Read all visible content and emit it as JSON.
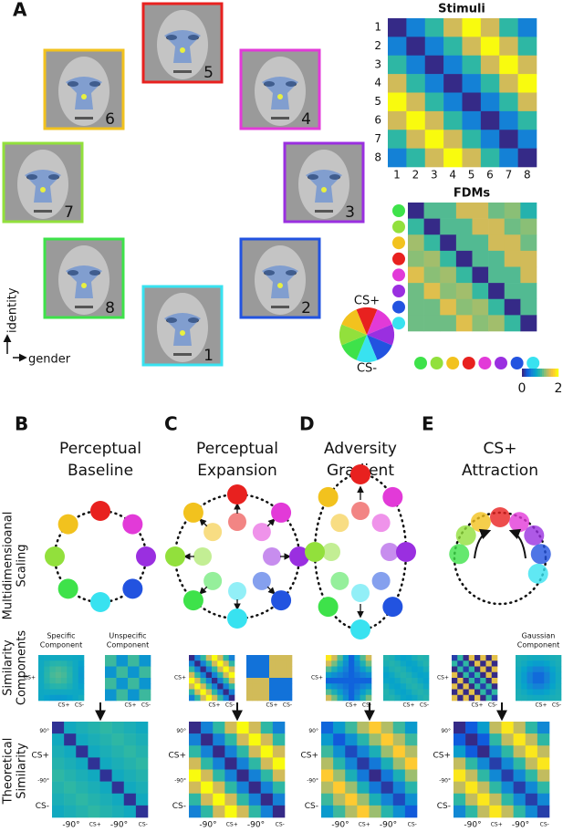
{
  "panel_a": {
    "letter": "A",
    "stimuli_title": "Stimuli",
    "fdms_title": "FDMs",
    "stimuli_ticks": [
      1,
      2,
      3,
      4,
      5,
      6,
      7,
      8
    ],
    "face_numbers": [
      1,
      2,
      3,
      4,
      5,
      6,
      7,
      8
    ],
    "cs_plus": "CS+",
    "cs_minus": "CS-",
    "axis_y": "identity",
    "axis_x": "gender",
    "colorbar_ticks": [
      0,
      2
    ]
  },
  "row_labels": [
    [
      "Multidimensioanal",
      "Scaling"
    ],
    [
      "Similarity",
      "Components"
    ],
    [
      "Theoretical",
      "Similarity"
    ]
  ],
  "matrix_ticks": {
    "y": [
      "90°",
      "CS+",
      "-90°",
      "CS-"
    ],
    "x": [
      "-90°",
      "CS+",
      "-90°",
      "CS-"
    ]
  },
  "component_ticks": [
    "CS+",
    "CS-"
  ],
  "panels": [
    {
      "letter": "B",
      "title": [
        "Perceptual",
        "Baseline"
      ],
      "components": [
        [
          "Specific",
          "Component"
        ],
        [
          "Unspecific",
          "Component"
        ]
      ]
    },
    {
      "letter": "C",
      "title": [
        "Perceptual",
        "Expansion"
      ]
    },
    {
      "letter": "D",
      "title": [
        "Adversity",
        "Gradient"
      ]
    },
    {
      "letter": "E",
      "title": [
        "CS+",
        "Attraction"
      ],
      "components": [
        null,
        [
          "Gaussian",
          "Component"
        ]
      ]
    }
  ]
}
